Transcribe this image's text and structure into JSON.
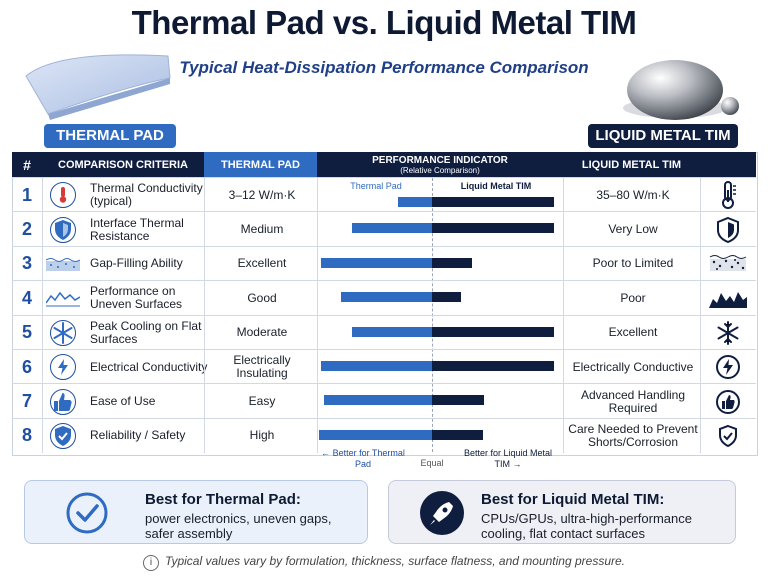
{
  "title": "Thermal Pad vs. Liquid Metal TIM",
  "subtitle": "Typical Heat-Dissipation Performance Comparison",
  "tags": {
    "pad": "THERMAL PAD",
    "lm": "LIQUID METAL TIM"
  },
  "headers": {
    "num": "#",
    "criteria": "COMPARISON CRITERIA",
    "pad": "THERMAL PAD",
    "indicator": "PERFORMANCE INDICATOR",
    "indicator_sub": "(Relative Comparison)",
    "lm": "LIQUID METAL TIM"
  },
  "bar_labels": {
    "pad": "Thermal Pad",
    "lm": "Liquid Metal TIM"
  },
  "colors": {
    "pad": "#2f6cc1",
    "lm": "#0f1d3f",
    "accent": "#1f4fa0"
  },
  "rows": [
    {
      "num": "1",
      "criteria": "Thermal Conductivity (typical)",
      "pad": "3–12 W/m·K",
      "lm": "35–80 W/m·K",
      "icon": "thermometer-icon"
    },
    {
      "num": "2",
      "criteria": "Interface Thermal Resistance",
      "pad": "Medium",
      "lm": "Very Low",
      "icon": "shield-icon"
    },
    {
      "num": "3",
      "criteria": "Gap-Filling Ability",
      "pad": "Excellent",
      "lm": "Poor to Limited",
      "icon": "surface-icon"
    },
    {
      "num": "4",
      "criteria": "Performance on Uneven Surfaces",
      "pad": "Good",
      "lm": "Poor",
      "icon": "uneven-surface-icon"
    },
    {
      "num": "5",
      "criteria": "Peak Cooling on Flat Surfaces",
      "pad": "Moderate",
      "lm": "Excellent",
      "icon": "snowflake-icon"
    },
    {
      "num": "6",
      "criteria": "Electrical Conductivity",
      "pad": "Electrically Insulating",
      "lm": "Electrically Conductive",
      "icon": "lightning-icon"
    },
    {
      "num": "7",
      "criteria": "Ease of Use",
      "pad": "Easy",
      "lm": "Advanced Handling Required",
      "icon": "thumbs-up-icon"
    },
    {
      "num": "8",
      "criteria": "Reliability / Safety",
      "pad": "High",
      "lm": "Care Needed to Prevent Shorts/Corrosion",
      "icon": "shield-check-icon"
    }
  ],
  "chart_data": {
    "type": "bar",
    "title": "PERFORMANCE INDICATOR",
    "subtitle": "(Relative Comparison)",
    "categories": [
      "Thermal Conductivity (typical)",
      "Interface Thermal Resistance",
      "Gap-Filling Ability",
      "Performance on Uneven Surfaces",
      "Peak Cooling on Flat Surfaces",
      "Electrical Conductivity",
      "Ease of Use",
      "Reliability / Safety"
    ],
    "series": [
      {
        "name": "Thermal Pad",
        "values": [
          0.3,
          0.7,
          0.97,
          0.8,
          0.7,
          0.97,
          0.95,
          0.99
        ]
      },
      {
        "name": "Liquid Metal TIM",
        "values": [
          1.0,
          1.0,
          0.33,
          0.24,
          1.0,
          1.0,
          0.43,
          0.42
        ]
      }
    ],
    "legend": {
      "left": "Better for Thermal Pad",
      "middle": "Equal",
      "right": "Better for Liquid Metal TIM"
    }
  },
  "cards": {
    "pad": {
      "title": "Best for Thermal Pad:",
      "text": "power electronics, uneven gaps, safer assembly"
    },
    "lm": {
      "title": "Best for Liquid Metal TIM:",
      "text": "CPUs/GPUs, ultra-high-performance cooling, flat contact surfaces"
    }
  },
  "footnote": "Typical values vary by formulation, thickness, surface flatness, and mounting pressure."
}
